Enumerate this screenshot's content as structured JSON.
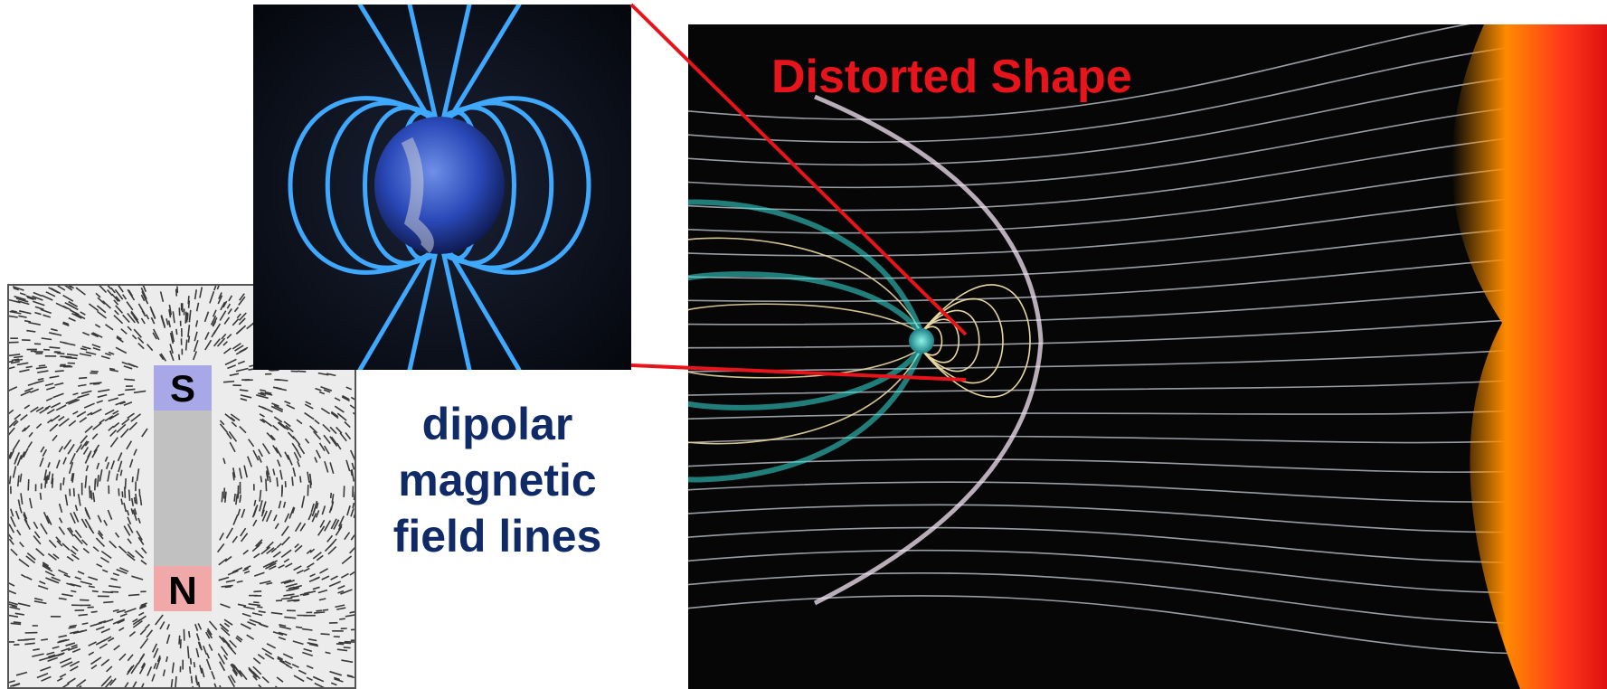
{
  "magnet": {
    "south_label": "S",
    "north_label": "N",
    "south_color": "#a8a8e8",
    "north_color": "#f0a8a8"
  },
  "caption": {
    "line1": "dipolar",
    "line2": "magnetic",
    "line3": "field lines"
  },
  "distorted": {
    "label": "Distorted Shape",
    "label_color": "#e8141b"
  },
  "colors": {
    "caption": "#0f2a66",
    "connector": "#e8141b",
    "earth_field": "#3fa8ff",
    "magnetosphere": "#39e0d8",
    "sun": "#ff3b1a"
  }
}
